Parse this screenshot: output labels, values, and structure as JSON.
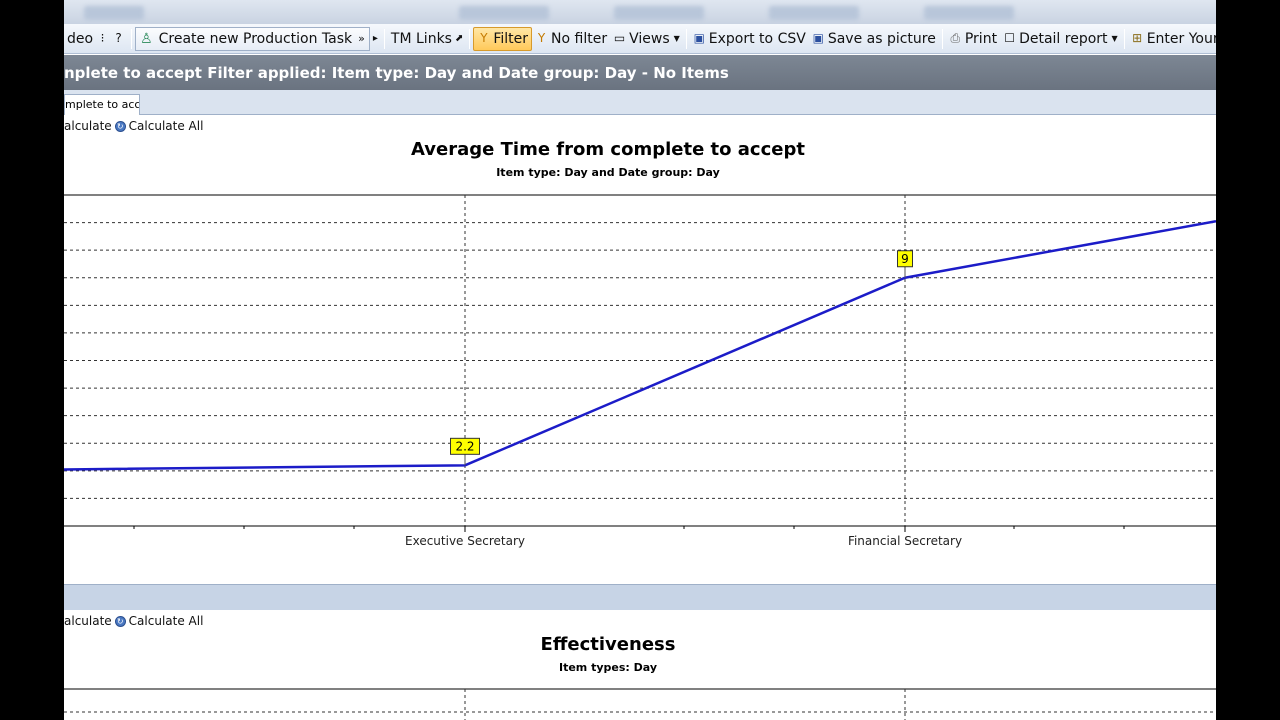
{
  "toolbar": {
    "video_label": "deo",
    "task_label": "Create new Production Task",
    "tm_links": "TM Links",
    "filter": "Filter",
    "no_filter": "No filter",
    "views": "Views",
    "export_csv": "Export to CSV",
    "save_picture": "Save as picture",
    "print": "Print",
    "detail_report": "Detail report",
    "enter_your": "Enter Your"
  },
  "filter_header": "nplete to accept Filter applied: Item type: Day and Date group: Day - No Items",
  "tabs": [
    {
      "label": "mplete to acc..."
    }
  ],
  "calc": {
    "calculate": "alculate",
    "calculate_all": "Calculate All"
  },
  "chart_data": [
    {
      "type": "line",
      "title": "Average Time from complete to accept",
      "subtitle": "Item type: Day and Date group: Day",
      "categories": [
        "Executive Secretary",
        "Financial Secretary"
      ],
      "series": [
        {
          "values": [
            2.2,
            9
          ],
          "color": "#1c1cc8"
        }
      ],
      "data_labels": [
        "2.2",
        "9"
      ],
      "ylim": [
        0,
        12
      ],
      "grid": true
    },
    {
      "type": "line",
      "title": "Effectiveness",
      "subtitle": "Item types: Day"
    }
  ],
  "colors": {
    "series": "#1c1cc8",
    "label_bg": "#ffff00",
    "header_bg": "#737d89"
  }
}
